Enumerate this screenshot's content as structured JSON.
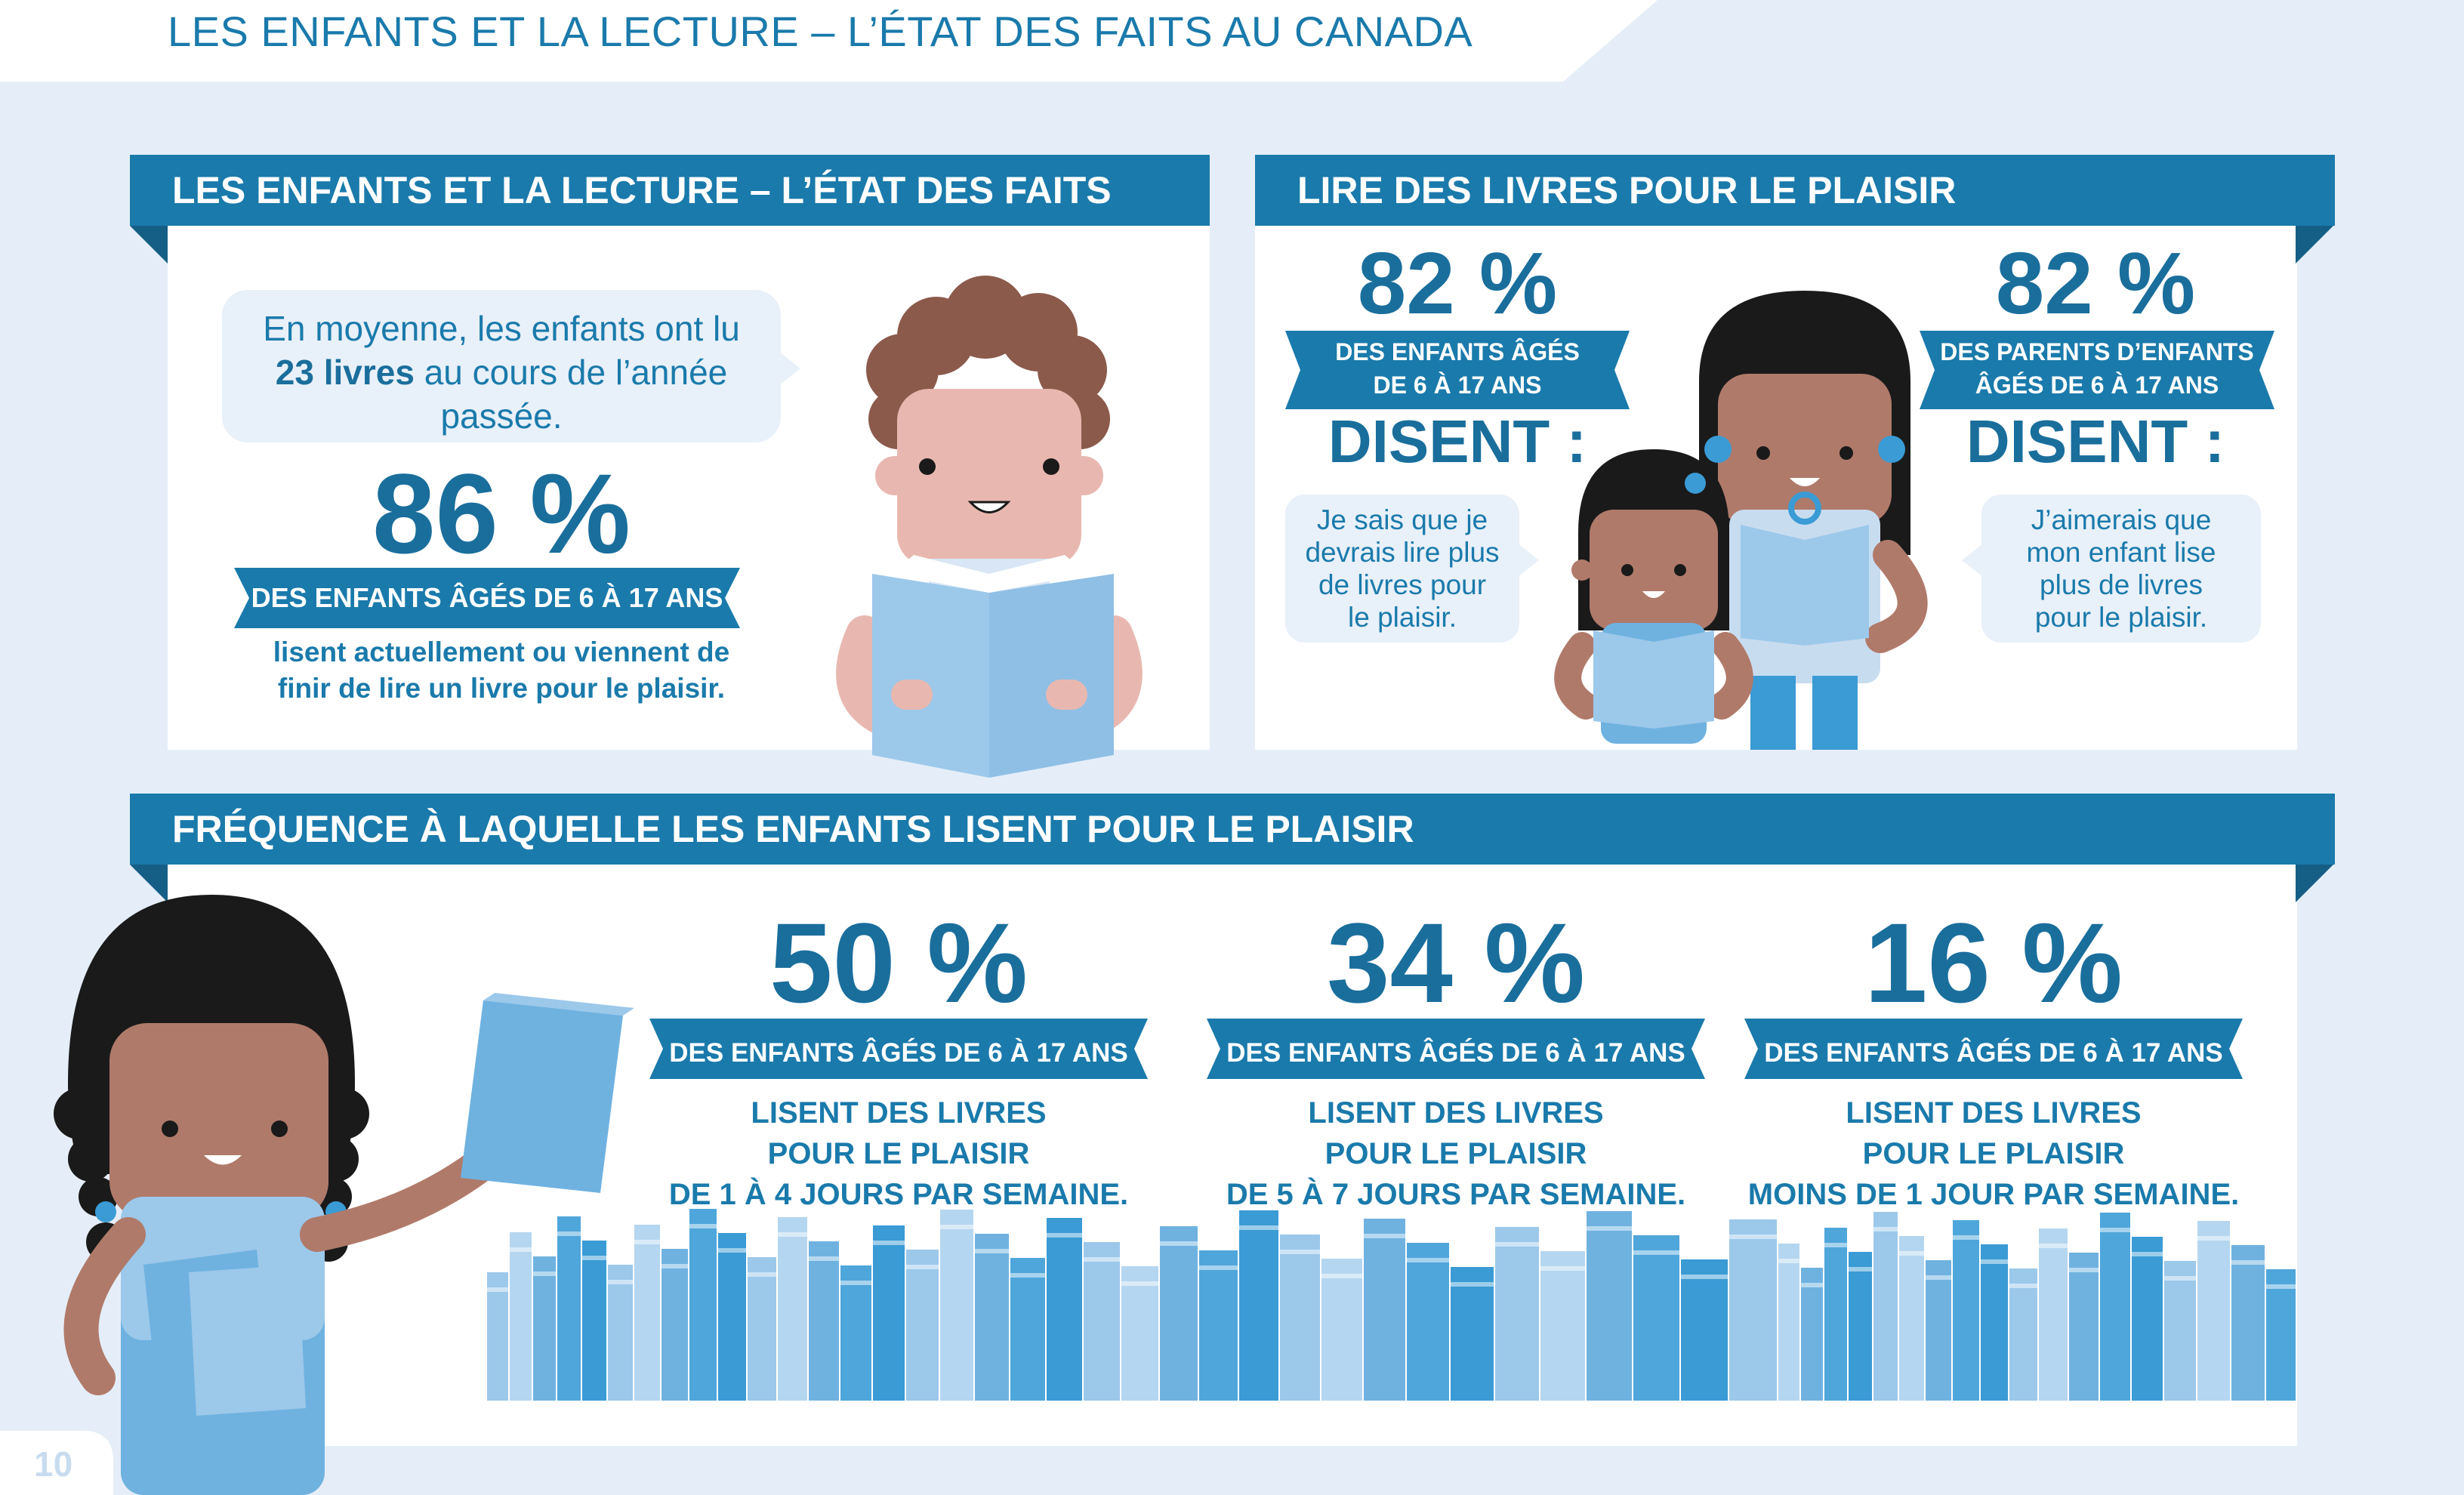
{
  "header": {
    "title": "LES ENFANTS ET LA LECTURE – L’ÉTAT DES FAITS AU CANADA"
  },
  "panel_facts": {
    "ribbon": "LES ENFANTS ET LA LECTURE – L’ÉTAT DES FAITS",
    "bubble_before": "En moyenne, les enfants ont lu ",
    "bubble_bold": "23 livres",
    "bubble_after": " au cours de l’année passée.",
    "stat": "86 %",
    "stat_label": "DES ENFANTS ÂGÉS DE 6 À 17 ANS",
    "caption_line1": "lisent actuellement ou viennent de",
    "caption_line2": "finir de lire un livre pour le plaisir."
  },
  "panel_pleasure": {
    "ribbon": "LIRE DES LIVRES POUR LE PLAISIR",
    "left": {
      "stat": "82 %",
      "label_line1": "DES ENFANTS ÂGÉS",
      "label_line2": "DE 6 À 17 ANS",
      "says": "DISENT :",
      "quote_line1": "Je sais que je",
      "quote_line2": "devrais lire plus",
      "quote_line3": "de livres pour",
      "quote_line4": "le plaisir."
    },
    "right": {
      "stat": "82 %",
      "label_line1": "DES PARENTS D’ENFANTS",
      "label_line2": "ÂGÉS DE 6 À 17 ANS",
      "says": "DISENT :",
      "quote_line1": "J’aimerais que",
      "quote_line2": "mon enfant lise",
      "quote_line3": "plus de livres",
      "quote_line4": "pour le plaisir."
    }
  },
  "panel_frequency": {
    "ribbon": "FRÉQUENCE À LAQUELLE LES ENFANTS LISENT POUR LE PLAISIR",
    "stats": [
      {
        "value": "50 %",
        "label": "DES ENFANTS ÂGÉS DE 6 À 17 ANS",
        "line1": "LISENT DES LIVRES",
        "line2": "POUR LE PLAISIR",
        "line3": "DE 1 À 4 JOURS PAR SEMAINE."
      },
      {
        "value": "34 %",
        "label": "DES ENFANTS ÂGÉS DE 6 À 17 ANS",
        "line1": "LISENT DES LIVRES",
        "line2": "POUR LE PLAISIR",
        "line3": "DE 5 À 7 JOURS PAR SEMAINE."
      },
      {
        "value": "16 %",
        "label": "DES ENFANTS ÂGÉS DE 6 À 17 ANS",
        "line1": "LISENT DES LIVRES",
        "line2": "POUR LE PLAISIR",
        "line3": "MOINS DE 1 JOUR PAR SEMAINE."
      }
    ]
  },
  "footer": {
    "page_number": "10"
  },
  "colors": {
    "background": "#e5eef8",
    "ribbon": "#1a7aab",
    "ribbon_fold": "#155f86",
    "number": "#1a6e9c",
    "bubble": "#e8f0f9",
    "book_light": "#9cc8ea",
    "book_mid": "#6fb2e0",
    "book_dark": "#3a9bd5"
  }
}
